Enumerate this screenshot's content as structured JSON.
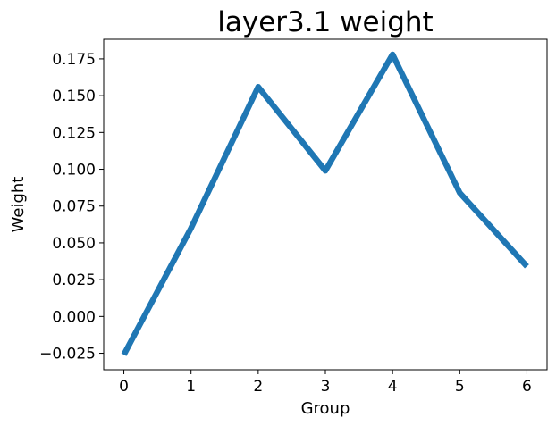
{
  "chart_data": {
    "type": "line",
    "title": "layer3.1 weight",
    "xlabel": "Group",
    "ylabel": "Weight",
    "x": [
      0,
      1,
      2,
      3,
      4,
      5,
      6
    ],
    "series": [
      {
        "values": [
          -0.026,
          0.06,
          0.156,
          0.099,
          0.178,
          0.084,
          0.034
        ],
        "color": "#1f77b4"
      }
    ],
    "xticks": [
      0,
      1,
      2,
      3,
      4,
      5,
      6
    ],
    "xtick_labels": [
      "0",
      "1",
      "2",
      "3",
      "4",
      "5",
      "6"
    ],
    "yticks": [
      -0.025,
      0.0,
      0.025,
      0.05,
      0.075,
      0.1,
      0.125,
      0.15,
      0.175
    ],
    "ytick_labels": [
      "−0.025",
      "0.000",
      "0.025",
      "0.050",
      "0.075",
      "0.100",
      "0.125",
      "0.150",
      "0.175"
    ],
    "xlim": [
      -0.3,
      6.3
    ],
    "ylim": [
      -0.0362,
      0.1883
    ],
    "grid": false,
    "legend": false
  }
}
